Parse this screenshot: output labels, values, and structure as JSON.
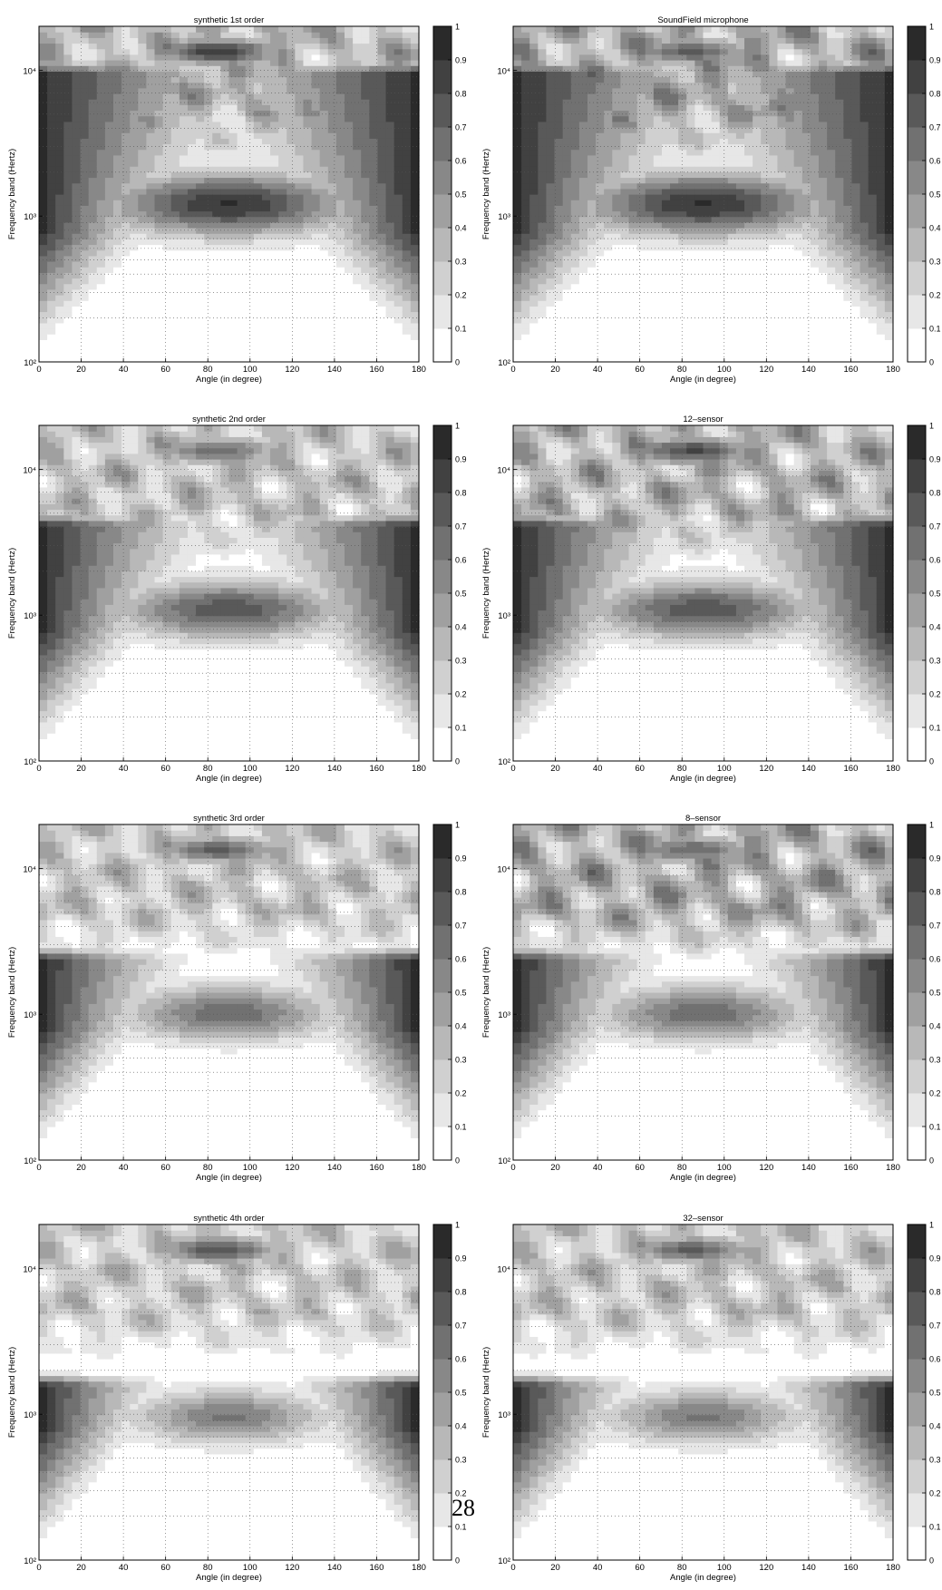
{
  "page_number": "28",
  "chart_data": [
    {
      "type": "heatmap",
      "title": "synthetic 1st order",
      "xlabel": "Angle (in degree)",
      "ylabel": "Frequency band (Hertz)",
      "xlim": [
        0,
        180
      ],
      "ylim": [
        100,
        20000
      ],
      "yscale": "log",
      "xticks": [
        "0",
        "20",
        "40",
        "60",
        "80",
        "100",
        "120",
        "140",
        "160",
        "180"
      ],
      "yticks": [
        {
          "value": 100,
          "label": "10²"
        },
        {
          "value": 1000,
          "label": "10³"
        },
        {
          "value": 10000,
          "label": "10⁴"
        }
      ],
      "colorbar": {
        "min": 0,
        "max": 1,
        "ticks": [
          "0",
          "0.1",
          "0.2",
          "0.3",
          "0.4",
          "0.5",
          "0.6",
          "0.7",
          "0.8",
          "0.9",
          "1"
        ]
      },
      "grid": true,
      "lobe_widen": 0.9,
      "top_mean": 0.48,
      "top_peak": 0.88
    },
    {
      "type": "heatmap",
      "title": "SoundField microphone",
      "xlabel": "Angle (in degree)",
      "ylabel": "Frequency band (Hertz)",
      "xlim": [
        0,
        180
      ],
      "ylim": [
        100,
        20000
      ],
      "yscale": "log",
      "xticks": [
        "0",
        "20",
        "40",
        "60",
        "80",
        "100",
        "120",
        "140",
        "160",
        "180"
      ],
      "yticks": [
        {
          "value": 100,
          "label": "10²"
        },
        {
          "value": 1000,
          "label": "10³"
        },
        {
          "value": 10000,
          "label": "10⁴"
        }
      ],
      "colorbar": {
        "min": 0,
        "max": 1,
        "ticks": [
          "0",
          "0.1",
          "0.2",
          "0.3",
          "0.4",
          "0.5",
          "0.6",
          "0.7",
          "0.8",
          "0.9",
          "1"
        ]
      },
      "grid": true,
      "lobe_widen": 0.9,
      "top_mean": 0.55,
      "top_peak": 0.72
    },
    {
      "type": "heatmap",
      "title": "synthetic 2nd order",
      "xlabel": "Angle (in degree)",
      "ylabel": "Frequency band (Hertz)",
      "xlim": [
        0,
        180
      ],
      "ylim": [
        100,
        20000
      ],
      "yscale": "log",
      "xticks": [
        "0",
        "20",
        "40",
        "60",
        "80",
        "100",
        "120",
        "140",
        "160",
        "180"
      ],
      "yticks": [
        {
          "value": 100,
          "label": "10²"
        },
        {
          "value": 1000,
          "label": "10³"
        },
        {
          "value": 10000,
          "label": "10⁴"
        }
      ],
      "colorbar": {
        "min": 0,
        "max": 1,
        "ticks": [
          "0",
          "0.1",
          "0.2",
          "0.3",
          "0.4",
          "0.5",
          "0.6",
          "0.7",
          "0.8",
          "0.9",
          "1"
        ]
      },
      "grid": true,
      "lobe_widen": 0.6,
      "top_mean": 0.42,
      "top_peak": 0.68
    },
    {
      "type": "heatmap",
      "title": "12–sensor",
      "xlabel": "Angle (in degree)",
      "ylabel": "Frequency band (Hertz)",
      "xlim": [
        0,
        180
      ],
      "ylim": [
        100,
        20000
      ],
      "yscale": "log",
      "xticks": [
        "0",
        "20",
        "40",
        "60",
        "80",
        "100",
        "120",
        "140",
        "160",
        "180"
      ],
      "yticks": [
        {
          "value": 100,
          "label": "10²"
        },
        {
          "value": 1000,
          "label": "10³"
        },
        {
          "value": 10000,
          "label": "10⁴"
        }
      ],
      "colorbar": {
        "min": 0,
        "max": 1,
        "ticks": [
          "0",
          "0.1",
          "0.2",
          "0.3",
          "0.4",
          "0.5",
          "0.6",
          "0.7",
          "0.8",
          "0.9",
          "1"
        ]
      },
      "grid": true,
      "lobe_widen": 0.6,
      "top_mean": 0.5,
      "top_peak": 0.82
    },
    {
      "type": "heatmap",
      "title": "synthetic 3rd order",
      "xlabel": "Angle (in degree)",
      "ylabel": "Frequency band (Hertz)",
      "xlim": [
        0,
        180
      ],
      "ylim": [
        100,
        20000
      ],
      "yscale": "log",
      "xticks": [
        "0",
        "20",
        "40",
        "60",
        "80",
        "100",
        "120",
        "140",
        "160",
        "180"
      ],
      "yticks": [
        {
          "value": 100,
          "label": "10²"
        },
        {
          "value": 1000,
          "label": "10³"
        },
        {
          "value": 10000,
          "label": "10⁴"
        }
      ],
      "colorbar": {
        "min": 0,
        "max": 1,
        "ticks": [
          "0",
          "0.1",
          "0.2",
          "0.3",
          "0.4",
          "0.5",
          "0.6",
          "0.7",
          "0.8",
          "0.9",
          "1"
        ]
      },
      "grid": true,
      "lobe_widen": 0.4,
      "top_mean": 0.4,
      "top_peak": 0.72
    },
    {
      "type": "heatmap",
      "title": "8–sensor",
      "xlabel": "Angle (in degree)",
      "ylabel": "Frequency band (Hertz)",
      "xlim": [
        0,
        180
      ],
      "ylim": [
        100,
        20000
      ],
      "yscale": "log",
      "xticks": [
        "0",
        "20",
        "40",
        "60",
        "80",
        "100",
        "120",
        "140",
        "160",
        "180"
      ],
      "yticks": [
        {
          "value": 100,
          "label": "10²"
        },
        {
          "value": 1000,
          "label": "10³"
        },
        {
          "value": 10000,
          "label": "10⁴"
        }
      ],
      "colorbar": {
        "min": 0,
        "max": 1,
        "ticks": [
          "0",
          "0.1",
          "0.2",
          "0.3",
          "0.4",
          "0.5",
          "0.6",
          "0.7",
          "0.8",
          "0.9",
          "1"
        ]
      },
      "grid": true,
      "lobe_widen": 0.4,
      "top_mean": 0.55,
      "top_peak": 0.7
    },
    {
      "type": "heatmap",
      "title": "synthetic 4th order",
      "xlabel": "Angle (in degree)",
      "ylabel": "Frequency band (Hertz)",
      "xlim": [
        0,
        180
      ],
      "ylim": [
        100,
        20000
      ],
      "yscale": "log",
      "xticks": [
        "0",
        "20",
        "40",
        "60",
        "80",
        "100",
        "120",
        "140",
        "160",
        "180"
      ],
      "yticks": [
        {
          "value": 100,
          "label": "10²"
        },
        {
          "value": 1000,
          "label": "10³"
        },
        {
          "value": 10000,
          "label": "10⁴"
        }
      ],
      "colorbar": {
        "min": 0,
        "max": 1,
        "ticks": [
          "0",
          "0.1",
          "0.2",
          "0.3",
          "0.4",
          "0.5",
          "0.6",
          "0.7",
          "0.8",
          "0.9",
          "1"
        ]
      },
      "grid": true,
      "lobe_widen": 0.25,
      "top_mean": 0.38,
      "top_peak": 0.78
    },
    {
      "type": "heatmap",
      "title": "32–sensor",
      "xlabel": "Angle (in degree)",
      "ylabel": "Frequency band (Hertz)",
      "xlim": [
        0,
        180
      ],
      "ylim": [
        100,
        20000
      ],
      "yscale": "log",
      "xticks": [
        "0",
        "20",
        "40",
        "60",
        "80",
        "100",
        "120",
        "140",
        "160",
        "180"
      ],
      "yticks": [
        {
          "value": 100,
          "label": "10²"
        },
        {
          "value": 1000,
          "label": "10³"
        },
        {
          "value": 10000,
          "label": "10⁴"
        }
      ],
      "colorbar": {
        "min": 0,
        "max": 1,
        "ticks": [
          "0",
          "0.1",
          "0.2",
          "0.3",
          "0.4",
          "0.5",
          "0.6",
          "0.7",
          "0.8",
          "0.9",
          "1"
        ]
      },
      "grid": true,
      "lobe_widen": 0.25,
      "top_mean": 0.4,
      "top_peak": 0.72
    }
  ]
}
